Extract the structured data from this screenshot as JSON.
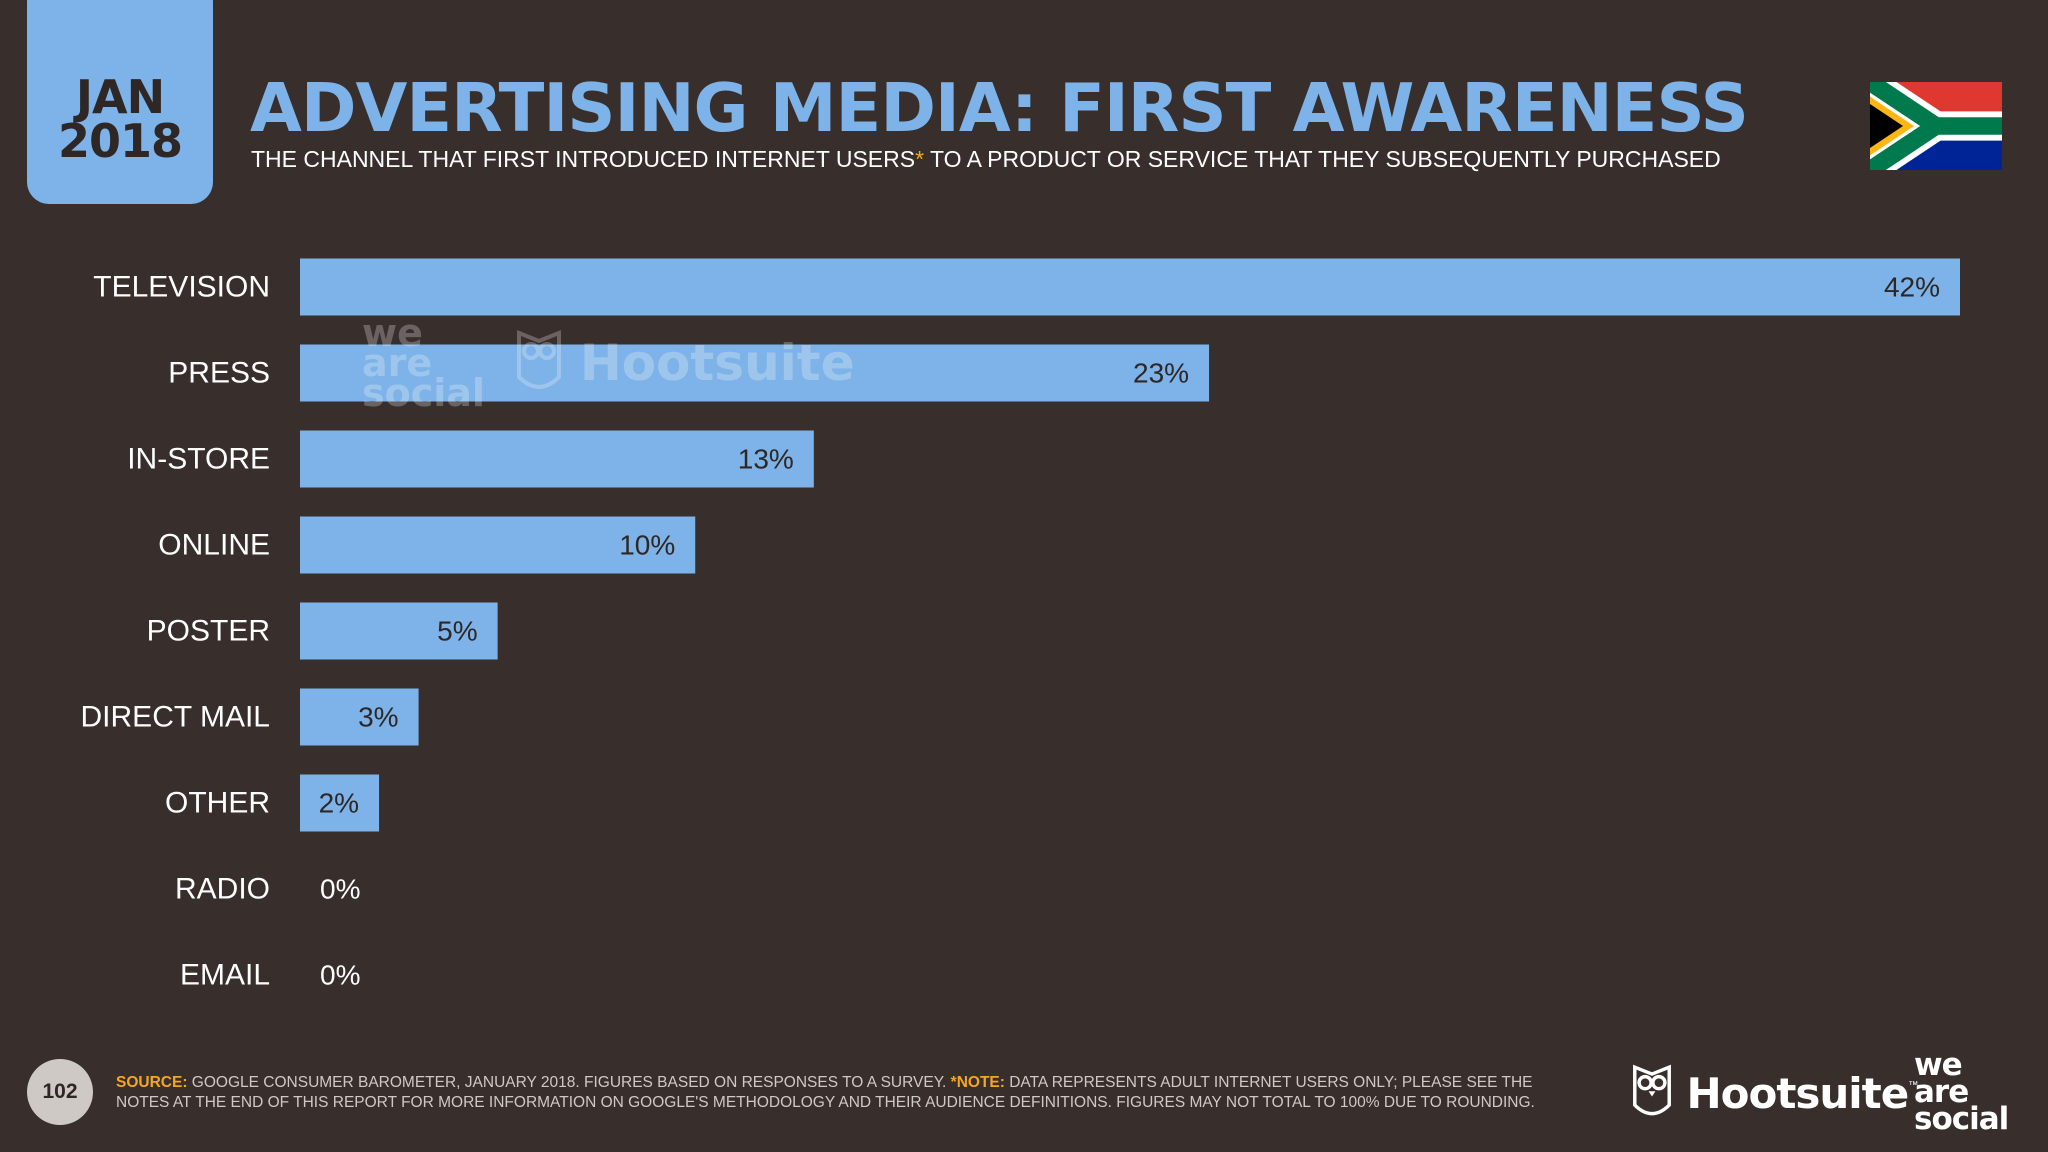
{
  "header": {
    "date_month": "JAN",
    "date_year": "2018",
    "title": "ADVERTISING MEDIA: FIRST AWARENESS",
    "subtitle_before": "THE CHANNEL THAT FIRST INTRODUCED INTERNET USERS",
    "subtitle_asterisk": "*",
    "subtitle_after": " TO A PRODUCT OR SERVICE THAT THEY SUBSEQUENTLY PURCHASED",
    "flag_icon": "south-africa-flag-icon"
  },
  "chart_data": {
    "type": "bar",
    "orientation": "horizontal",
    "categories": [
      "TELEVISION",
      "PRESS",
      "IN-STORE",
      "ONLINE",
      "POSTER",
      "DIRECT MAIL",
      "OTHER",
      "RADIO",
      "EMAIL"
    ],
    "values": [
      42,
      23,
      13,
      10,
      5,
      3,
      2,
      0,
      0
    ],
    "value_labels": [
      "42%",
      "23%",
      "13%",
      "10%",
      "5%",
      "3%",
      "2%",
      "0%",
      "0%"
    ],
    "xlim": [
      0,
      42
    ],
    "grid": false,
    "legend": "none",
    "bar_color": "#7db3e8"
  },
  "watermark": {
    "we_are_social": [
      "we",
      "are",
      "social"
    ],
    "hootsuite": "Hootsuite"
  },
  "footer": {
    "page_number": "102",
    "source_key": "SOURCE:",
    "source_text": " GOOGLE CONSUMER BAROMETER, JANUARY 2018. FIGURES BASED ON RESPONSES TO A SURVEY. ",
    "note_key": "*NOTE:",
    "note_text": " DATA REPRESENTS ADULT INTERNET USERS ONLY; PLEASE SEE THE NOTES AT THE END OF THIS REPORT FOR MORE INFORMATION ON GOOGLE'S METHODOLOGY AND THEIR AUDIENCE DEFINITIONS. FIGURES MAY NOT TOTAL TO 100% DUE TO ROUNDING.",
    "hootsuite_name": "Hootsuite",
    "hootsuite_tm": "™",
    "we_are_social": [
      "we",
      "are",
      "social"
    ]
  },
  "colors": {
    "background": "#382f2c",
    "accent_blue": "#7db3e8",
    "note_orange": "#f5a623"
  }
}
